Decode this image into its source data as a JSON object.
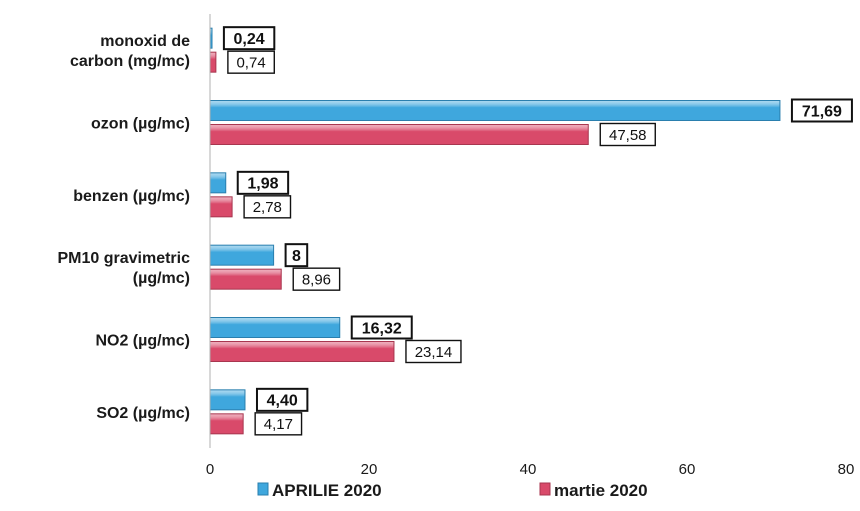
{
  "chart_data": {
    "type": "bar",
    "orientation": "horizontal",
    "categories": [
      [
        "monoxid de",
        "carbon (mg/mc)"
      ],
      [
        "ozon (µg/mc)"
      ],
      [
        "benzen (µg/mc)"
      ],
      [
        "PM10 gravimetric",
        "(µg/mc)"
      ],
      [
        "NO2 (µg/mc)"
      ],
      [
        "SO2 (µg/mc)"
      ]
    ],
    "series": [
      {
        "name": "APRILIE 2020",
        "color": "#3fa7dd",
        "values": [
          0.24,
          71.69,
          1.98,
          8,
          16.32,
          4.4
        ],
        "labels": [
          "0,24",
          "71,69",
          "1,98",
          "8",
          "16,32",
          "4,40"
        ]
      },
      {
        "name": "martie 2020",
        "color": "#d94a6a",
        "values": [
          0.74,
          47.58,
          2.78,
          8.96,
          23.14,
          4.17
        ],
        "labels": [
          "0,74",
          "47,58",
          "2,78",
          "8,96",
          "23,14",
          "4,17"
        ]
      }
    ],
    "xlim": [
      0,
      80
    ],
    "xticks": [
      0,
      20,
      40,
      60,
      80
    ],
    "xtick_labels": [
      "0",
      "20",
      "40",
      "60",
      "80"
    ],
    "grid": false,
    "legend_position": "bottom"
  }
}
